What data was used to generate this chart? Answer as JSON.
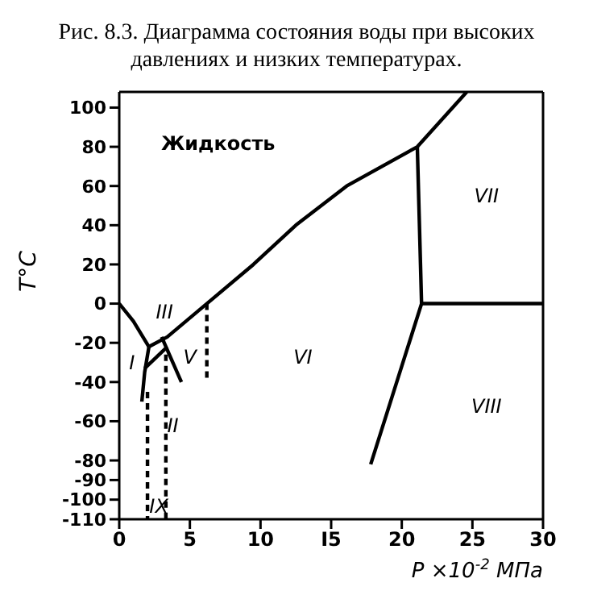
{
  "chart_data": {
    "type": "line",
    "title": "Рис. 8.3. Диаграмма состояния воды при высоких давлениях и низких температурах.",
    "xlabel": "P ×10$^{-2}$ МПа",
    "ylabel": "T°C",
    "xlim": [
      0,
      30
    ],
    "xticks": [
      0,
      5,
      10,
      {
        "value": 15,
        "label": "I5"
      },
      20,
      25,
      30
    ],
    "ylim": [
      -110,
      108
    ],
    "yticks": [
      100,
      80,
      60,
      40,
      20,
      0,
      -20,
      -40,
      -60,
      -80,
      -90,
      -100,
      -110
    ],
    "grid": false,
    "marker": "none",
    "series": [
      {
        "color": "#000000",
        "line_style": "solid",
        "x": [
          0,
          1,
          2.1
        ],
        "values": [
          0,
          -9,
          -22
        ]
      },
      {
        "color": "#000000",
        "line_style": "solid",
        "x": [
          2.1,
          3.4,
          6.2,
          9.5,
          12.5,
          16.1,
          21.1,
          24.6
        ],
        "values": [
          -22,
          -17,
          0,
          20,
          40,
          60,
          80,
          108
        ]
      },
      {
        "color": "#000000",
        "line_style": "solid",
        "x": [
          21.1,
          21.4,
          17.8
        ],
        "values": [
          80,
          0,
          -82
        ]
      },
      {
        "color": "#000000",
        "line_style": "solid",
        "x": [
          21.4,
          30
        ],
        "values": [
          0,
          0
        ]
      },
      {
        "color": "#000000",
        "line_style": "solid",
        "x": [
          2.1,
          1.8,
          1.6
        ],
        "values": [
          -22,
          -35,
          -50
        ]
      },
      {
        "color": "#000000",
        "line_style": "solid",
        "x": [
          1.8,
          3.4
        ],
        "values": [
          -33,
          -22
        ]
      },
      {
        "color": "#000000",
        "line_style": "solid",
        "x": [
          3,
          4.4
        ],
        "values": [
          -17,
          -40
        ]
      },
      {
        "color": "#000000",
        "line_style": "dashed",
        "x": [
          2,
          2
        ],
        "values": [
          -45,
          -110
        ]
      },
      {
        "color": "#000000",
        "line_style": "dashed",
        "x": [
          3.3,
          3.3
        ],
        "values": [
          -26,
          -110
        ]
      },
      {
        "color": "#000000",
        "line_style": "dashed",
        "x": [
          6.2,
          6.2
        ],
        "values": [
          0,
          -40
        ]
      }
    ],
    "annotations": [
      "Жидкость",
      "III",
      "I",
      "V",
      "VI",
      "VII",
      "VIII",
      "II",
      "IX"
    ]
  }
}
